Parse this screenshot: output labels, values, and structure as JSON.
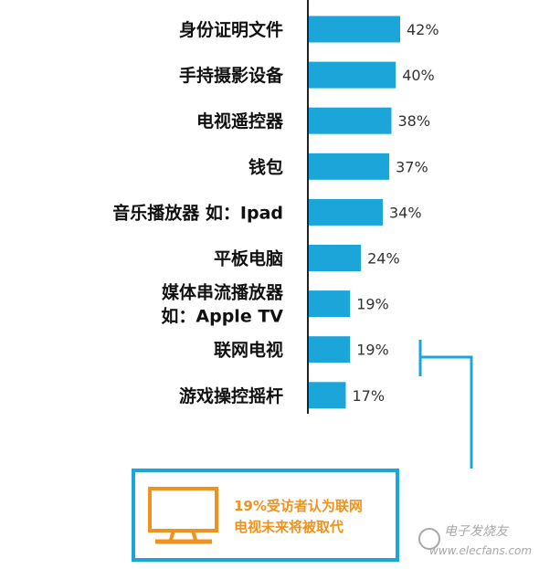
{
  "chart_data": {
    "type": "bar",
    "orientation": "horizontal",
    "categories": [
      [
        "身份证明文件"
      ],
      [
        "手持摄影设备"
      ],
      [
        "电视遥控器"
      ],
      [
        "钱包"
      ],
      [
        "音乐播放器 如：Ipad"
      ],
      [
        "平板电脑"
      ],
      [
        "媒体串流播放器",
        "如：Apple TV"
      ],
      [
        "联网电视"
      ],
      [
        "游戏操控摇杆"
      ]
    ],
    "values": [
      42,
      40,
      38,
      37,
      34,
      24,
      19,
      19,
      17
    ],
    "value_labels": [
      "42%",
      "40%",
      "38%",
      "37%",
      "34%",
      "24%",
      "19%",
      "19%",
      "17%"
    ],
    "unit": "%",
    "bar_color": "#1ca5d9",
    "xlim": [
      0,
      42
    ],
    "grid": false,
    "legend": "none"
  },
  "callout": {
    "lines": [
      "19%受访者认为联网",
      "电视未来将被取代"
    ],
    "text_color": "#f0921e",
    "border_color": "#1ca5d9",
    "icon": "tv-monitor-icon"
  },
  "watermark": {
    "brand": "电子发烧友",
    "url": "www.elecfans.com"
  }
}
